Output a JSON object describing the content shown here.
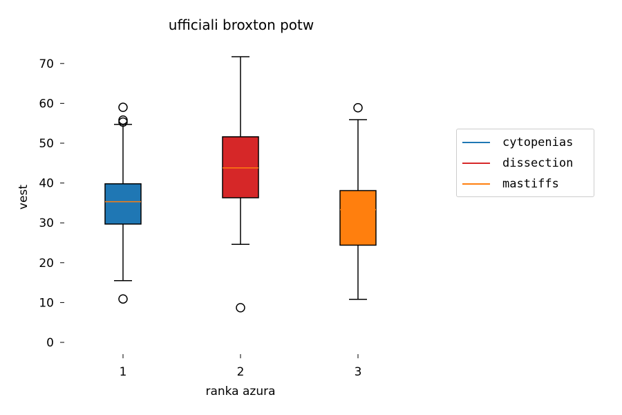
{
  "chart_data": {
    "type": "boxplot",
    "title": "ufficiali broxton potw",
    "xlabel": "ranka azura",
    "ylabel": "vest",
    "ylim": [
      -3,
      75
    ],
    "yticks": [
      0,
      10,
      20,
      30,
      40,
      50,
      60,
      70
    ],
    "categories": [
      "1",
      "2",
      "3"
    ],
    "boxes": [
      {
        "category": "1",
        "color": "#1f77b4",
        "whisker_low": 15.5,
        "q1": 29.7,
        "median": 35.3,
        "q3": 39.8,
        "whisker_high": 54.7,
        "outliers": [
          10.9,
          55.3,
          55.8,
          59.0
        ]
      },
      {
        "category": "2",
        "color": "#d62728",
        "whisker_low": 24.6,
        "q1": 36.3,
        "median": 43.8,
        "q3": 51.6,
        "whisker_high": 71.7,
        "outliers": [
          8.7
        ]
      },
      {
        "category": "3",
        "color": "#ff7f0e",
        "whisker_low": 10.8,
        "q1": 24.4,
        "median": 33.3,
        "q3": 38.1,
        "whisker_high": 55.9,
        "outliers": [
          58.9
        ]
      }
    ],
    "median_color": "#ff7f0e",
    "grid": false,
    "legend_position": "right",
    "legend": [
      {
        "label": "cytopenias",
        "color": "#1f77b4"
      },
      {
        "label": "dissection",
        "color": "#d62728"
      },
      {
        "label": "mastiffs",
        "color": "#ff7f0e"
      }
    ]
  }
}
